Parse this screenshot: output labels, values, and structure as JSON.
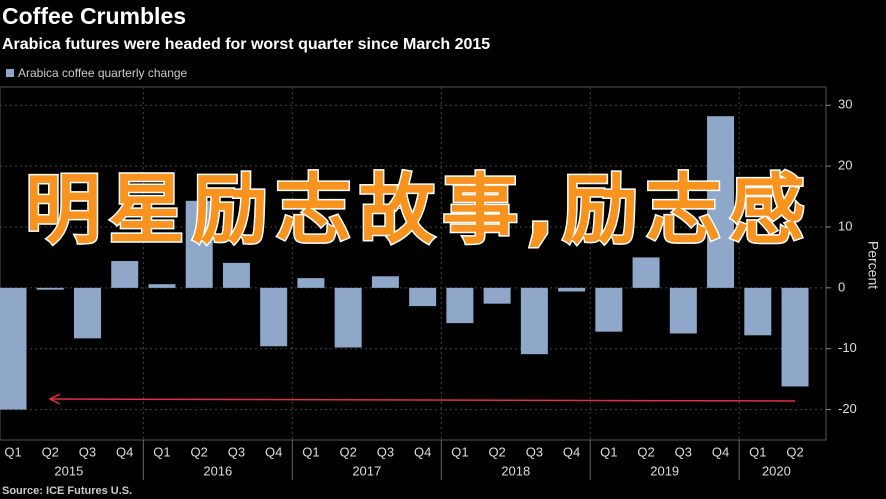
{
  "chart_data": {
    "type": "bar",
    "title": "Coffee Crumbles",
    "subtitle": "Arabica futures were headed for worst quarter since March 2015",
    "source": "Source: ICE Futures U.S.",
    "y_label": "Percent",
    "overlay_text": "明星励志故事,励志感",
    "categories": [
      "Q1",
      "Q2",
      "Q3",
      "Q4",
      "Q1",
      "Q2",
      "Q3",
      "Q4",
      "Q1",
      "Q2",
      "Q3",
      "Q4",
      "Q1",
      "Q2",
      "Q3",
      "Q4",
      "Q1",
      "Q2",
      "Q3",
      "Q4",
      "Q1",
      "Q2"
    ],
    "years": [
      "2015",
      "2016",
      "2017",
      "2018",
      "2019",
      "2020"
    ],
    "series": [
      {
        "name": "Arabica coffee quarterly change",
        "color": "#8fa7c9",
        "values": [
          -20,
          -0.3,
          -8.3,
          4.4,
          0.6,
          14.3,
          4.1,
          -9.6,
          1.6,
          -9.8,
          1.9,
          -3,
          -5.8,
          -2.6,
          -10.9,
          -0.6,
          -7.2,
          5,
          -7.5,
          28.2,
          -7.8,
          -16.2
        ]
      }
    ],
    "ylim": [
      -25,
      33
    ],
    "yticks": [
      -20,
      -10,
      0,
      10,
      20,
      30
    ],
    "grid": true
  }
}
